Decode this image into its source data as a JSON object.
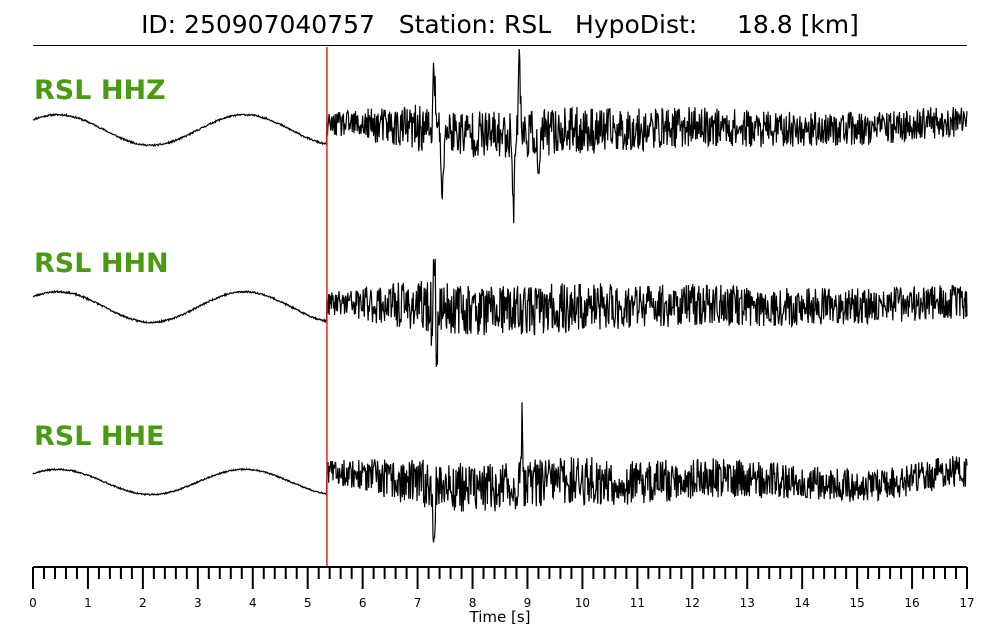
{
  "title": "ID: 250907040757   Station: RSL   HypoDist:     18.8 [km]",
  "chart_data": {
    "type": "line",
    "xlabel": "Time [s]",
    "xlim": [
      0,
      17
    ],
    "major_ticks": [
      0,
      1,
      2,
      3,
      4,
      5,
      6,
      7,
      8,
      9,
      10,
      11,
      12,
      13,
      14,
      15,
      16,
      17
    ],
    "minor_tick_step": 0.2,
    "pick_time": 5.35,
    "pick_color": "#e8241c",
    "label_color": "#4a9a12",
    "series": [
      {
        "name": "RSL HHZ",
        "noise_amp": 0.06,
        "early_amp": 0.28,
        "late_amp": 0.16,
        "drift": [
          0.1,
          0.3,
          0.55,
          0.65,
          0.2
        ],
        "spikes": [
          [
            7.3,
            0.8
          ],
          [
            7.45,
            -1.0
          ],
          [
            8.75,
            -0.9
          ],
          [
            8.85,
            1.1
          ],
          [
            9.2,
            -0.7
          ]
        ],
        "seed": 11
      },
      {
        "name": "RSL HHN",
        "noise_amp": 0.04,
        "early_amp": 0.3,
        "late_amp": 0.18,
        "drift": [
          0.05,
          0.2,
          0.35,
          0.45,
          0.1
        ],
        "spikes": [
          [
            7.3,
            1.0
          ],
          [
            7.28,
            -0.65
          ],
          [
            7.35,
            -0.55
          ]
        ],
        "seed": 23
      },
      {
        "name": "RSL HHE",
        "noise_amp": 0.08,
        "early_amp": 0.35,
        "late_amp": 0.2,
        "drift": [
          0.3,
          0.45,
          0.55,
          0.7,
          0.35
        ],
        "spikes": [
          [
            7.3,
            -0.8
          ],
          [
            8.9,
            0.9
          ]
        ],
        "seed": 37
      }
    ]
  }
}
